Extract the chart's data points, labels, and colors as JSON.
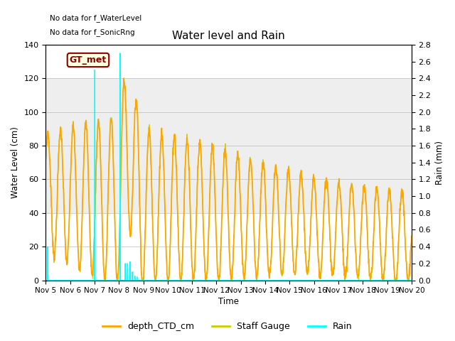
{
  "title": "Water level and Rain",
  "xlabel": "Time",
  "ylabel_left": "Water Level (cm)",
  "ylabel_right": "Rain (mm)",
  "annotation1": "No data for f_WaterLevel",
  "annotation2": "No data for f_SonicRng",
  "box_label": "GT_met",
  "ylim_left": [
    0,
    140
  ],
  "ylim_right": [
    0.0,
    2.8
  ],
  "yticks_left": [
    0,
    20,
    40,
    60,
    80,
    100,
    120,
    140
  ],
  "yticks_right": [
    0.0,
    0.2,
    0.4,
    0.6,
    0.8,
    1.0,
    1.2,
    1.4,
    1.6,
    1.8,
    2.0,
    2.2,
    2.4,
    2.6,
    2.8
  ],
  "shaded_region": [
    40,
    120
  ],
  "color_ctd": "#FFA500",
  "color_staff": "#CCCC00",
  "color_rain": "#00FFFF",
  "background_color": "#ffffff",
  "legend_labels": [
    "depth_CTD_cm",
    "Staff Gauge",
    "Rain"
  ],
  "xtick_labels": [
    "Nov 5",
    "Nov 6",
    "Nov 7",
    "Nov 8",
    "Nov 9",
    "Nov 10",
    "Nov 11",
    "Nov 12",
    "Nov 13",
    "Nov 14",
    "Nov 15",
    "Nov 16",
    "Nov 17",
    "Nov 18",
    "Nov 19",
    "Nov 20"
  ],
  "xtick_positions": [
    0,
    1,
    2,
    3,
    4,
    5,
    6,
    7,
    8,
    9,
    10,
    11,
    12,
    13,
    14,
    15
  ],
  "rain_events_mm": [
    [
      0.08,
      0.4
    ],
    [
      2.0,
      2.5
    ],
    [
      3.05,
      2.7
    ],
    [
      3.25,
      0.2
    ],
    [
      3.35,
      0.2
    ],
    [
      3.45,
      0.22
    ],
    [
      3.55,
      0.1
    ],
    [
      3.65,
      0.05
    ],
    [
      3.75,
      0.04
    ]
  ]
}
